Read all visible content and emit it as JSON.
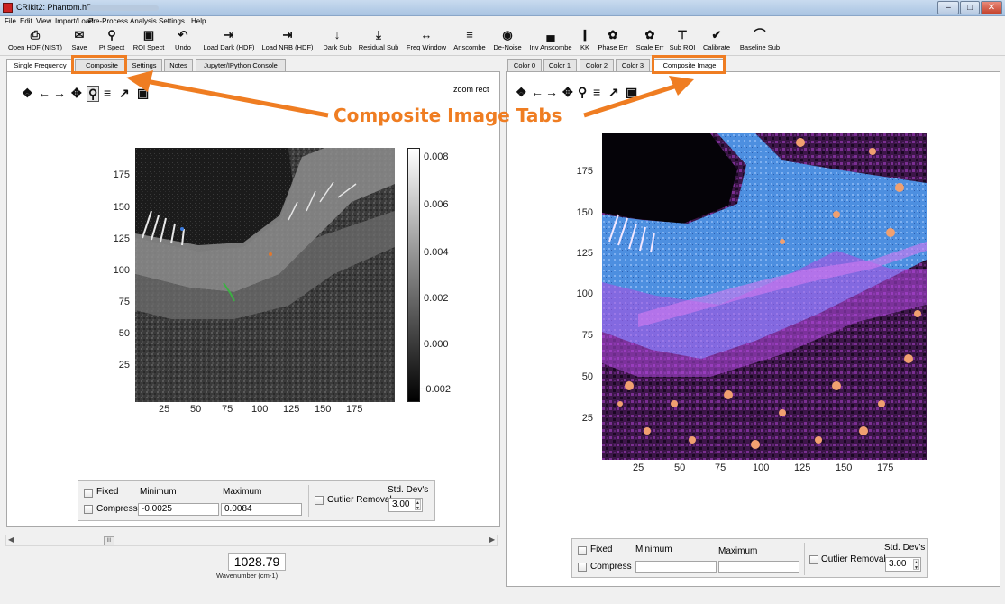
{
  "window": {
    "title": "CRIkit2: Phantom.h5",
    "controls": [
      "–",
      "□",
      "✕"
    ]
  },
  "menu": [
    "File",
    "Edit",
    "View",
    "Import/Load",
    "Pre-Process",
    "Analysis",
    "Settings",
    "Help"
  ],
  "toolbar": [
    {
      "label": "Open HDF (NIST)",
      "icon": "open-icon"
    },
    {
      "label": "Save",
      "icon": "save-icon"
    },
    {
      "label": "Pt Spect",
      "icon": "point-spectrum-icon"
    },
    {
      "label": "ROI Spect",
      "icon": "roi-spectrum-icon"
    },
    {
      "label": "Undo",
      "icon": "undo-icon"
    },
    {
      "label": "Load Dark (HDF)",
      "icon": "load-dark-icon"
    },
    {
      "label": "Load NRB (HDF)",
      "icon": "load-nrb-icon"
    },
    {
      "label": "Dark Sub",
      "icon": "dark-sub-icon"
    },
    {
      "label": "Residual Sub",
      "icon": "residual-sub-icon"
    },
    {
      "label": "Freq Window",
      "icon": "freq-window-icon"
    },
    {
      "label": "Anscombe",
      "icon": "anscombe-icon"
    },
    {
      "label": "De-Noise",
      "icon": "denoise-icon"
    },
    {
      "label": "Inv Anscombe",
      "icon": "inv-anscombe-icon"
    },
    {
      "label": "KK",
      "icon": "kk-icon"
    },
    {
      "label": "Phase Err",
      "icon": "phase-err-icon"
    },
    {
      "label": "Scale Err",
      "icon": "scale-err-icon"
    },
    {
      "label": "Sub ROI",
      "icon": "sub-roi-icon"
    },
    {
      "label": "Calibrate",
      "icon": "calibrate-icon"
    },
    {
      "label": "Baseline Sub",
      "icon": "baseline-sub-icon"
    }
  ],
  "left_tabs": [
    "Single Frequency",
    "Composite",
    "Settings",
    "Notes",
    "Jupyter/IPython Console"
  ],
  "right_tabs": [
    "Color 0",
    "Color 1",
    "Color 2",
    "Color 3",
    "Composite Image"
  ],
  "left_plot": {
    "mode_text": "zoom rect",
    "x_ticks": [
      "25",
      "50",
      "75",
      "100",
      "125",
      "150",
      "175"
    ],
    "y_ticks": [
      "175",
      "150",
      "125",
      "100",
      "75",
      "50",
      "25"
    ],
    "colorbar_ticks": [
      "0.008",
      "0.006",
      "0.004",
      "0.002",
      "0.000",
      "−0.002"
    ],
    "colorbar_gradient": [
      "#ffffff",
      "#000000"
    ]
  },
  "right_plot": {
    "x_ticks": [
      "25",
      "50",
      "75",
      "100",
      "125",
      "150",
      "175"
    ],
    "y_ticks": [
      "175",
      "150",
      "125",
      "100",
      "75",
      "50",
      "25"
    ]
  },
  "left_controls": {
    "fixed_label": "Fixed",
    "compress_label": "Compress",
    "minimum_label": "Minimum",
    "maximum_label": "Maximum",
    "minimum_value": "-0.0025",
    "maximum_value": "0.0084",
    "outlier_label": "Outlier Removal",
    "std_label": "Std. Dev's",
    "std_value": "3.00"
  },
  "right_controls": {
    "fixed_label": "Fixed",
    "compress_label": "Compress",
    "minimum_label": "Minimum",
    "maximum_label": "Maximum",
    "minimum_value": "",
    "maximum_value": "",
    "outlier_label": "Outlier Removal",
    "std_label": "Std. Dev's",
    "std_value": "3.00"
  },
  "wavenumber": {
    "value": "1028.79",
    "label": "Wavenumber (cm-1)",
    "slider_thumb": "III"
  },
  "annotation": {
    "text": "Composite Image Tabs",
    "color": "#ef7d22"
  }
}
